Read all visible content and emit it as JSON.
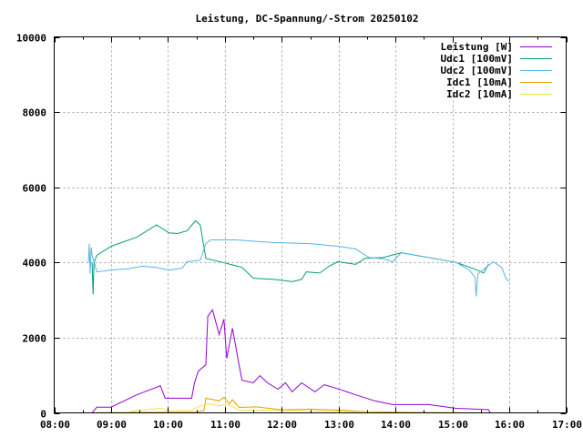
{
  "chart_data": {
    "type": "line",
    "title": "Leistung, DC-Spannung/-Strom 20250102",
    "xlabel": "",
    "ylabel": "",
    "xlim": [
      "08:00",
      "17:00"
    ],
    "ylim": [
      0,
      10000
    ],
    "x_ticks": [
      "08:00",
      "09:00",
      "10:00",
      "11:00",
      "12:00",
      "13:00",
      "14:00",
      "15:00",
      "16:00",
      "17:00"
    ],
    "y_ticks": [
      0,
      2000,
      4000,
      6000,
      8000,
      10000
    ],
    "grid": true,
    "legend": "top-right",
    "series": [
      {
        "name": "Leistung [W]",
        "color": "#9400d3",
        "x": [
          "08:40",
          "08:45",
          "09:00",
          "09:27",
          "09:52",
          "09:57",
          "10:25",
          "10:28",
          "10:32",
          "10:40",
          "10:42",
          "10:47",
          "10:54",
          "10:59",
          "11:02",
          "11:08",
          "11:15",
          "11:18",
          "11:30",
          "11:37",
          "11:45",
          "11:56",
          "12:04",
          "12:11",
          "12:21",
          "12:35",
          "12:45",
          "13:04",
          "13:18",
          "13:38",
          "13:57",
          "14:35",
          "15:04",
          "15:38",
          "15:40"
        ],
        "y": [
          0,
          150,
          150,
          480,
          720,
          390,
          390,
          800,
          1110,
          1280,
          2570,
          2740,
          2080,
          2490,
          1450,
          2250,
          1280,
          870,
          800,
          990,
          800,
          630,
          800,
          560,
          800,
          560,
          750,
          600,
          480,
          320,
          220,
          220,
          120,
          85,
          0
        ]
      },
      {
        "name": "Udc1 [100mV]",
        "color": "#009e73",
        "x": [
          "08:40",
          "08:41",
          "08:42",
          "08:45",
          "09:00",
          "09:27",
          "09:48",
          "10:01",
          "10:10",
          "10:20",
          "10:29",
          "10:34",
          "10:40",
          "10:58",
          "11:18",
          "11:30",
          "11:52",
          "12:11",
          "12:21",
          "12:26",
          "12:40",
          "12:50",
          "12:59",
          "13:18",
          "13:28",
          "13:47",
          "14:06",
          "14:35",
          "15:04",
          "15:23",
          "15:33",
          "15:38"
        ],
        "y": [
          4000,
          3150,
          4000,
          4190,
          4430,
          4670,
          5000,
          4790,
          4770,
          4840,
          5110,
          5000,
          4110,
          4000,
          3870,
          3580,
          3550,
          3490,
          3550,
          3750,
          3720,
          3900,
          4020,
          3950,
          4110,
          4130,
          4260,
          4130,
          4000,
          3830,
          3720,
          3950
        ]
      },
      {
        "name": "Udc2 [100mV]",
        "color": "#56b4e9",
        "x": [
          "08:36",
          "08:37",
          "08:38",
          "08:39",
          "08:40",
          "08:45",
          "09:00",
          "09:18",
          "09:33",
          "09:48",
          "10:01",
          "10:15",
          "10:20",
          "10:34",
          "10:40",
          "10:45",
          "11:12",
          "11:50",
          "12:30",
          "12:59",
          "13:18",
          "13:32",
          "13:47",
          "13:57",
          "14:06",
          "14:35",
          "15:04",
          "15:18",
          "15:24",
          "15:25",
          "15:27",
          "15:43",
          "15:52",
          "15:57",
          "16:00"
        ],
        "y": [
          4000,
          4500,
          3700,
          4400,
          4200,
          3750,
          3800,
          3830,
          3900,
          3870,
          3800,
          3850,
          4020,
          4060,
          4500,
          4600,
          4600,
          4530,
          4500,
          4430,
          4360,
          4130,
          4100,
          4020,
          4260,
          4130,
          4000,
          3800,
          3600,
          3100,
          3700,
          4020,
          3870,
          3550,
          3500
        ]
      },
      {
        "name": "Idc1 [10mA]",
        "color": "#e69f00",
        "x": [
          "08:40",
          "09:00",
          "10:30",
          "10:38",
          "10:40",
          "10:54",
          "10:59",
          "11:05",
          "11:08",
          "11:15",
          "11:33",
          "12:01",
          "12:30",
          "13:08",
          "13:28",
          "15:13",
          "15:40"
        ],
        "y": [
          0,
          10,
          20,
          60,
          390,
          320,
          410,
          240,
          350,
          145,
          160,
          80,
          100,
          65,
          30,
          0,
          0
        ]
      },
      {
        "name": "Idc2 [10mA]",
        "color": "#f0e442",
        "x": [
          "08:40",
          "09:18",
          "09:27",
          "09:52",
          "10:01",
          "10:25",
          "10:34",
          "10:42",
          "10:54",
          "11:02",
          "11:15",
          "11:53",
          "13:00",
          "13:47",
          "15:40"
        ],
        "y": [
          0,
          20,
          60,
          120,
          60,
          60,
          190,
          240,
          190,
          240,
          80,
          65,
          40,
          10,
          0
        ]
      }
    ]
  }
}
